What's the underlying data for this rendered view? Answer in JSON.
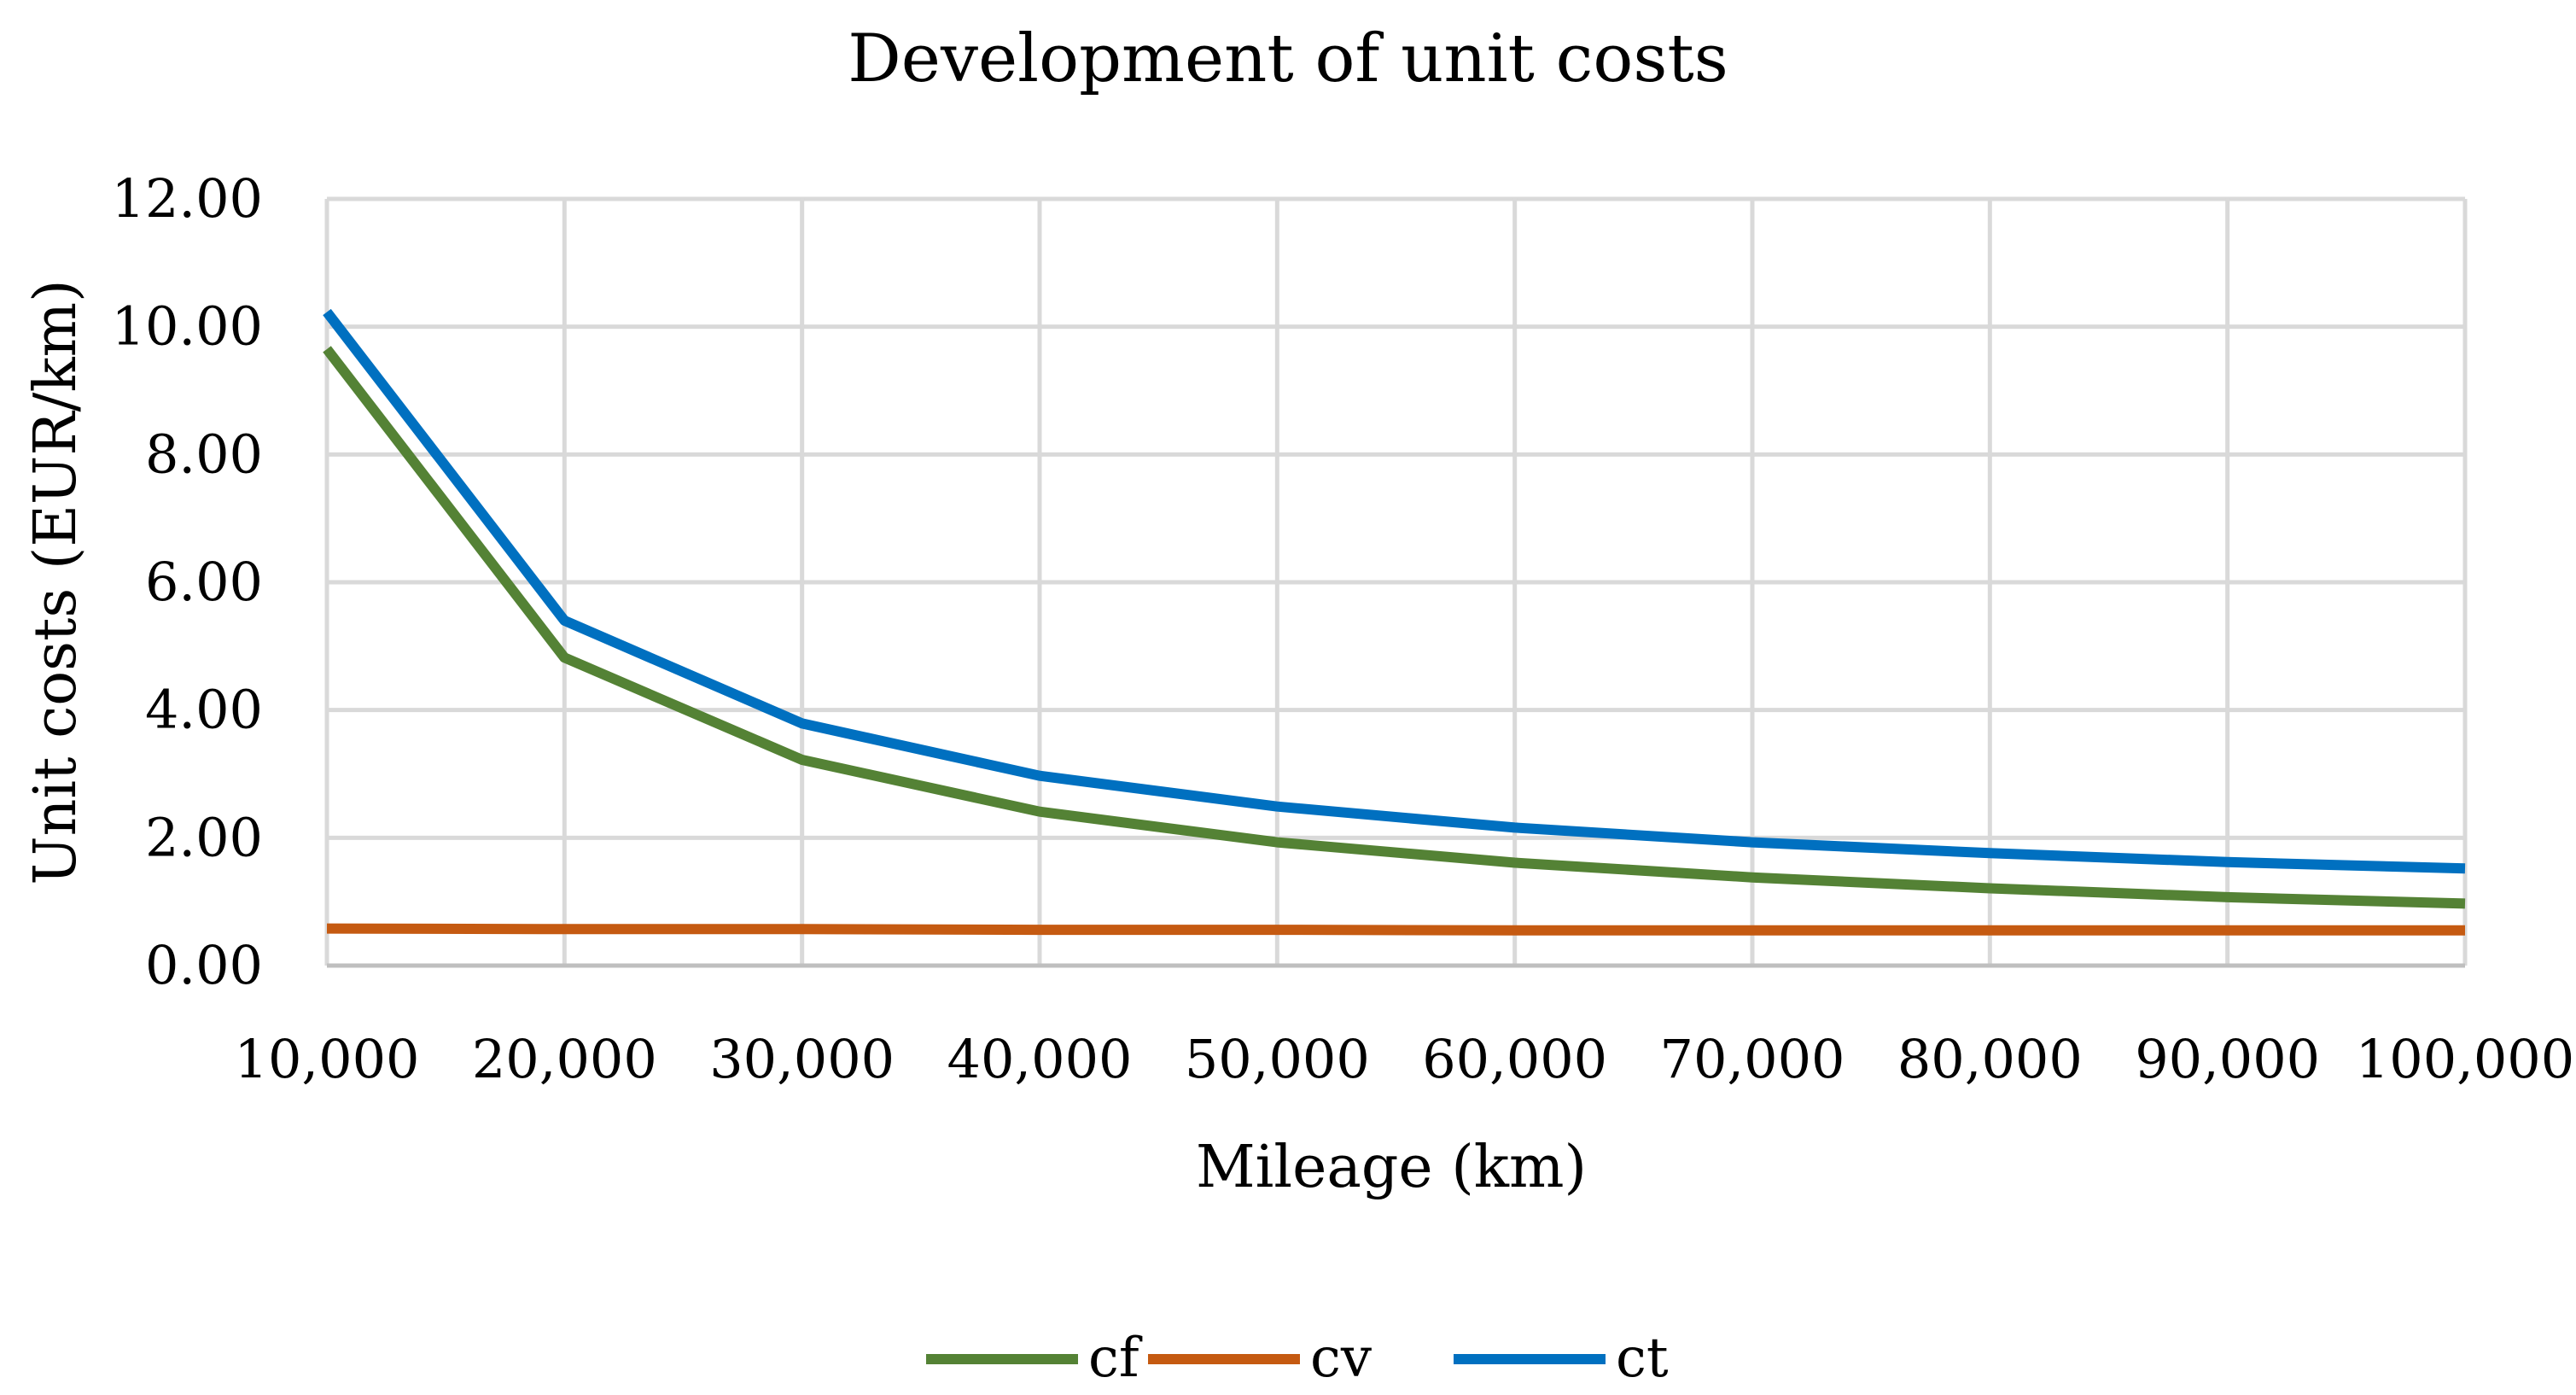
{
  "chart_data": {
    "type": "line",
    "title": "Development of unit costs",
    "xlabel": "Mileage (km)",
    "ylabel": "Unit costs (EUR/km)",
    "categories": [
      "10,000",
      "20,000",
      "30,000",
      "40,000",
      "50,000",
      "60,000",
      "70,000",
      "80,000",
      "90,000",
      "100,000"
    ],
    "x": [
      10000,
      20000,
      30000,
      40000,
      50000,
      60000,
      70000,
      80000,
      90000,
      100000
    ],
    "y_ticks": [
      "0.00",
      "2.00",
      "4.00",
      "6.00",
      "8.00",
      "10.00",
      "12.00"
    ],
    "ylim": [
      0,
      12
    ],
    "xlim": [
      10000,
      100000
    ],
    "grid": true,
    "legend_position": "bottom",
    "series": [
      {
        "name": "cf",
        "color": "#548235",
        "values": [
          9.65,
          4.82,
          3.22,
          2.41,
          1.93,
          1.61,
          1.38,
          1.21,
          1.07,
          0.97
        ]
      },
      {
        "name": "cv",
        "color": "#c55a11",
        "values": [
          0.58,
          0.57,
          0.57,
          0.56,
          0.56,
          0.55,
          0.55,
          0.55,
          0.55,
          0.55
        ]
      },
      {
        "name": "ct",
        "color": "#0070c0",
        "values": [
          10.23,
          5.4,
          3.79,
          2.97,
          2.49,
          2.16,
          1.93,
          1.76,
          1.62,
          1.52
        ]
      }
    ]
  }
}
